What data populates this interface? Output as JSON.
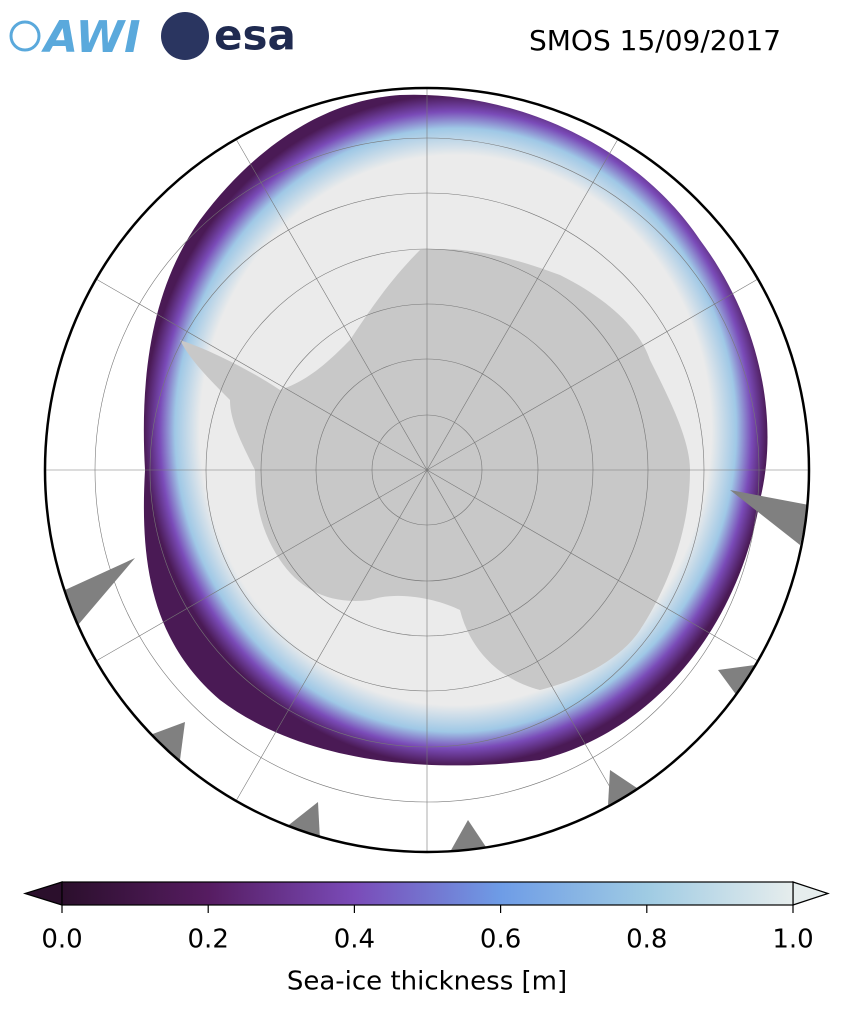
{
  "header": {
    "logos": [
      "AWI",
      "esa"
    ],
    "title": "SMOS 15/09/2017"
  },
  "colorbar": {
    "label": "Sea-ice thickness [m]",
    "lim": [
      0,
      1
    ],
    "ticks": [
      {
        "value": 0,
        "label": "0.0"
      },
      {
        "value": 0.2,
        "label": "0.2"
      },
      {
        "value": 0.4,
        "label": "0.4"
      },
      {
        "value": 0.6,
        "label": "0.6"
      },
      {
        "value": 0.8,
        "label": "0.8"
      },
      {
        "value": 1,
        "label": "1.0"
      }
    ]
  }
}
